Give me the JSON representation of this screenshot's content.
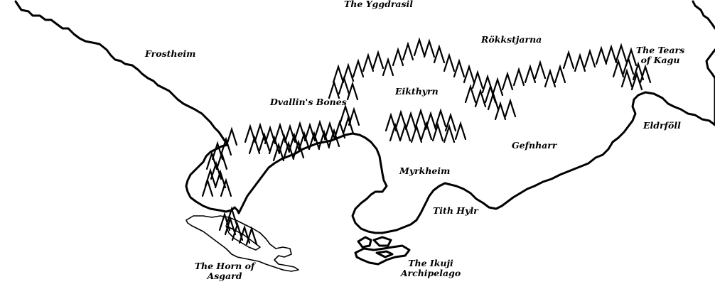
{
  "map": {
    "labels": {
      "yggdrasil": "The Yggdrasil",
      "frostheim": "Frostheim",
      "rokkstjarna": "Rökkstjarna",
      "tears_line1": "The Tears",
      "tears_line2": "of Kagu",
      "dvallins_bones": "Dvallin's Bones",
      "eikthyrn": "Eikthyrn",
      "eldrfoll": "Eldrföll",
      "gefnharr": "Gefnharr",
      "myrkheim": "Myrkheim",
      "tith_hylr": "Tith Hylr",
      "horn_line1": "The Horn of",
      "horn_line2": "Asgard",
      "ikuji_line1": "The Ikuji",
      "ikuji_line2": "Archipelago"
    },
    "colors": {
      "ink": "#000000",
      "paper": "#ffffff"
    }
  }
}
